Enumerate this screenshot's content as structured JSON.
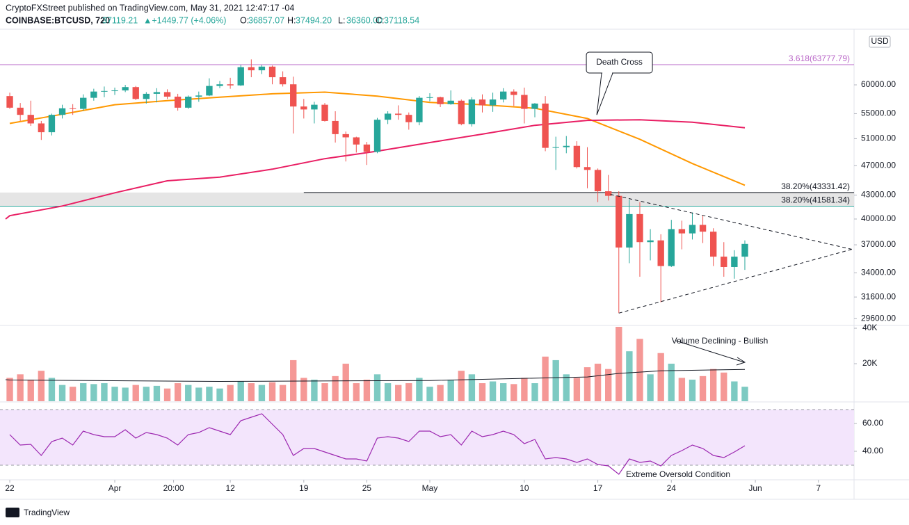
{
  "chart_data": {
    "type": "candlestick",
    "header": {
      "publisher": "CryptoFXStreet published on TradingView.com, May 31, 2021 12:47:17 -04",
      "symbol": "COINBASE:BTCUSD, 720",
      "last": "37119.21",
      "change": "▲+1449.77 (+4.06%)",
      "ohlc": [
        [
          "O:",
          "36857.07"
        ],
        [
          "H:",
          "37494.20"
        ],
        [
          "L:",
          "36360.00"
        ],
        [
          "C:",
          "37118.54"
        ]
      ]
    },
    "currency": "USD",
    "log_scale": true,
    "grid": false,
    "ylim": [
      29000,
      70100
    ],
    "yticks": [
      {
        "value": 60000,
        "label": "60000.00"
      },
      {
        "value": 55000,
        "label": "55000.00"
      },
      {
        "value": 51000,
        "label": "51000.00"
      },
      {
        "value": 47000,
        "label": "47000.00"
      },
      {
        "value": 43000,
        "label": "43000.00"
      },
      {
        "value": 40000,
        "label": "40000.00"
      },
      {
        "value": 37000,
        "label": "37000.00"
      },
      {
        "value": 34000,
        "label": "34000.00"
      },
      {
        "value": 31600,
        "label": "31600.00"
      },
      {
        "value": 29600,
        "label": "29600.00"
      }
    ],
    "xlim": [
      -0.93,
      80.4
    ],
    "xticks": [
      {
        "value": 0,
        "label": "22"
      },
      {
        "value": 10,
        "label": "Apr"
      },
      {
        "value": 15.6,
        "label": "20:00"
      },
      {
        "value": 21,
        "label": "12"
      },
      {
        "value": 28,
        "label": "19"
      },
      {
        "value": 34,
        "label": "25"
      },
      {
        "value": 40,
        "label": "May"
      },
      {
        "value": 49,
        "label": "10"
      },
      {
        "value": 56,
        "label": "17"
      },
      {
        "value": 63,
        "label": "24"
      },
      {
        "value": 71,
        "label": "Jun"
      },
      {
        "value": 77,
        "label": "7"
      }
    ],
    "up_color": "#26a69a",
    "down_color": "#ef5350",
    "candles": {
      "open": [
        58000,
        56000,
        54800,
        53400,
        52000,
        54800,
        55900,
        55800,
        57700,
        58800,
        58900,
        59000,
        59600,
        57500,
        58400,
        58700,
        57900,
        56000,
        57900,
        58100,
        59800,
        60100,
        59900,
        63300,
        62700,
        63400,
        61400,
        60100,
        56200,
        55700,
        56500,
        53800,
        51700,
        51200,
        50100,
        49000,
        54000,
        55000,
        54800,
        53600,
        57700,
        57800,
        56600,
        57200,
        53300,
        57400,
        56400,
        57400,
        58800,
        58200,
        55800,
        56700,
        49600,
        49700,
        49900,
        46800,
        46400,
        43500,
        42900,
        36700,
        40600,
        37300,
        37500,
        34700,
        38800,
        38300,
        39300,
        38500,
        35700,
        34600,
        35700
      ],
      "high": [
        58600,
        56800,
        57200,
        53800,
        55000,
        56500,
        56600,
        58300,
        59300,
        59700,
        59500,
        60000,
        59800,
        58700,
        59400,
        59200,
        58400,
        58100,
        58800,
        61200,
        60700,
        61300,
        63700,
        64800,
        63700,
        63600,
        62500,
        61500,
        57500,
        57000,
        56800,
        55400,
        52100,
        51300,
        50500,
        54300,
        55400,
        56400,
        55200,
        58000,
        58500,
        57900,
        59000,
        57400,
        57800,
        58300,
        58600,
        59400,
        59200,
        59500,
        56800,
        58000,
        51300,
        51400,
        50600,
        49700,
        46600,
        45700,
        43500,
        42400,
        42100,
        38800,
        38200,
        39900,
        39800,
        40800,
        40400,
        38900,
        37300,
        36400,
        37500
      ],
      "low": [
        55800,
        53800,
        53000,
        50800,
        51500,
        54200,
        54800,
        55500,
        57200,
        57800,
        58200,
        58700,
        57300,
        56700,
        56900,
        57500,
        55500,
        55800,
        57000,
        58000,
        59400,
        59300,
        59800,
        61400,
        62000,
        60100,
        59700,
        51800,
        54200,
        53400,
        53700,
        50400,
        47600,
        48900,
        47100,
        48800,
        53300,
        54000,
        52400,
        53100,
        57100,
        56100,
        56500,
        53100,
        52900,
        55200,
        55300,
        56900,
        56300,
        53400,
        54400,
        49100,
        46400,
        48800,
        46600,
        43900,
        42100,
        42300,
        30100,
        35000,
        33600,
        35300,
        31100,
        34600,
        36500,
        37600,
        37200,
        34700,
        33600,
        33400,
        34300
      ],
      "close": [
        56000,
        54800,
        53400,
        52000,
        54800,
        55900,
        55800,
        57700,
        58800,
        58900,
        59000,
        59600,
        57500,
        58400,
        58700,
        57900,
        56000,
        57900,
        58100,
        59800,
        60100,
        59900,
        63300,
        62700,
        63400,
        61400,
        60100,
        56200,
        55700,
        56500,
        53800,
        51700,
        51200,
        50100,
        49000,
        54000,
        55000,
        54800,
        53600,
        57700,
        57800,
        56600,
        57200,
        53300,
        57400,
        56400,
        57400,
        58800,
        58200,
        55800,
        56700,
        49600,
        49700,
        49900,
        46800,
        46400,
        43500,
        42900,
        36700,
        40600,
        37300,
        37500,
        34700,
        38800,
        38300,
        39300,
        38500,
        35700,
        34600,
        35700,
        37100
      ]
    },
    "series": [
      {
        "color": "#ff9800",
        "x": [
          0,
          5,
          10,
          15,
          20,
          25,
          30,
          35,
          40,
          45,
          50,
          55,
          60,
          65,
          70
        ],
        "values": [
          53400,
          54900,
          56500,
          57200,
          57800,
          58400,
          58700,
          58000,
          56900,
          56500,
          55900,
          54200,
          50900,
          47300,
          44300
        ]
      },
      {
        "color": "#e91e63",
        "x": [
          -0.4,
          0,
          5,
          10,
          15,
          20,
          25,
          30,
          35,
          40,
          45,
          50,
          55,
          60,
          65,
          70
        ],
        "values": [
          40000,
          40400,
          41600,
          43300,
          44900,
          45400,
          46500,
          48000,
          49100,
          50400,
          51700,
          53100,
          53900,
          54000,
          53600,
          52700
        ]
      }
    ],
    "levels": [
      {
        "label": "3.618(63777.79)",
        "value": 63777.79,
        "color": "#ba68c8",
        "x_start": -0.93
      },
      {
        "label": "38.20%(43331.42)",
        "value": 43331.42,
        "color": "#131722",
        "x_start": 28
      },
      {
        "label": "38.20%(41581.34)",
        "value": 41581.34,
        "color": "#26a69a",
        "x_start": -0.93
      }
    ],
    "band": [
      41581.34,
      43331.42
    ],
    "trendlines": [
      {
        "x": [
          57.2,
          80.2
        ],
        "values": [
          43100,
          36500
        ]
      },
      {
        "x": [
          58,
          80.2
        ],
        "values": [
          30100,
          36500
        ]
      }
    ],
    "annotations": [
      {
        "text": "Death Cross",
        "x": 55.9,
        "value": 54800
      }
    ],
    "volume": {
      "values": [
        12000,
        14000,
        11000,
        16000,
        12000,
        8000,
        7000,
        9000,
        8500,
        9000,
        7000,
        6500,
        8000,
        7000,
        7500,
        6000,
        9000,
        8000,
        6500,
        7000,
        6000,
        8000,
        10000,
        9000,
        8000,
        9500,
        8000,
        22000,
        12000,
        11000,
        9000,
        13000,
        20000,
        9000,
        11000,
        14000,
        9000,
        8000,
        9000,
        12000,
        7000,
        8000,
        11000,
        16000,
        14000,
        9000,
        10000,
        9000,
        8500,
        12000,
        9000,
        24000,
        22000,
        14000,
        12000,
        18000,
        20000,
        17000,
        42000,
        27000,
        34000,
        14000,
        26000,
        20000,
        12000,
        11000,
        13000,
        17000,
        15000,
        10000,
        7000
      ],
      "ylim": [
        0,
        40800
      ],
      "yticks": [
        {
          "value": 20000,
          "label": "20K"
        },
        {
          "value": 40000,
          "label": "40K"
        }
      ],
      "ma": {
        "color": "#131722",
        "x": [
          -0.4,
          0,
          20,
          40,
          55,
          58,
          62,
          70
        ],
        "values": [
          11000,
          10800,
          10000,
          10500,
          12500,
          14500,
          16000,
          16800
        ]
      },
      "annotation": "Volume Declining - Bullish"
    },
    "rsi": {
      "values": [
        52,
        44.5,
        45,
        37,
        47,
        49.5,
        44.5,
        54.5,
        52,
        50.5,
        50.5,
        55.5,
        49.5,
        53.5,
        52,
        49.5,
        44.5,
        52,
        53.5,
        57,
        54.5,
        52,
        62,
        64.5,
        67,
        59.5,
        52,
        37,
        42,
        42,
        39.5,
        37,
        34.5,
        34.5,
        33,
        49.5,
        50.5,
        49.5,
        47,
        54.5,
        54.5,
        50.5,
        52,
        44.5,
        54.5,
        50.5,
        52,
        54.5,
        52,
        45.5,
        48.5,
        34.5,
        35.5,
        34.5,
        32,
        34.5,
        30.5,
        29.5,
        23.5,
        34.5,
        32,
        33,
        29.5,
        37,
        40.5,
        44.5,
        42,
        37,
        35.5,
        39.5,
        44
      ],
      "color": "#9c27b0",
      "ylim": [
        19.5,
        72
      ],
      "yticks": [
        {
          "value": 40,
          "label": "40.00"
        },
        {
          "value": 60,
          "label": "60.00"
        }
      ],
      "band": [
        30,
        70
      ],
      "annotation": "Extreme Oversold Condition"
    },
    "footer": "TradingView"
  }
}
